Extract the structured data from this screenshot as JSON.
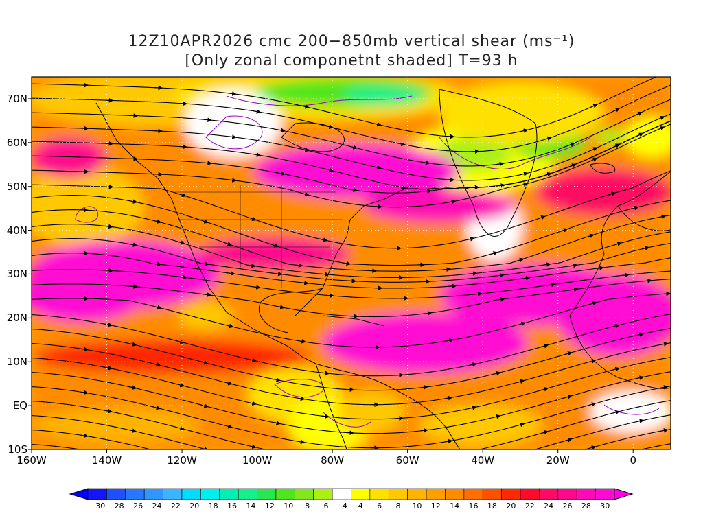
{
  "title": {
    "line1": "12Z10APR2026 cmc 200−850mb vertical shear (ms⁻¹)",
    "line2": "[Only zonal componetnt shaded] T=93 h"
  },
  "map": {
    "lat_ticks": [
      "70N",
      "60N",
      "50N",
      "40N",
      "30N",
      "20N",
      "10N",
      "EQ",
      "10S"
    ],
    "lon_ticks": [
      "160W",
      "140W",
      "120W",
      "100W",
      "80W",
      "60W",
      "40W",
      "20W",
      "0"
    ],
    "lat_range": [
      -10,
      75
    ],
    "lon_range": [
      -160,
      10
    ],
    "projection": "cylindrical equidistant",
    "overlay": "streamlines (black) with arrowheads; purple zero-contour lines; continental outlines"
  },
  "colorbar": {
    "labels": [
      "−30",
      "−28",
      "−26",
      "−24",
      "−22",
      "−20",
      "−18",
      "−16",
      "−14",
      "−12",
      "−10",
      "−8",
      "−6",
      "−4",
      "4",
      "6",
      "8",
      "10",
      "12",
      "14",
      "16",
      "18",
      "20",
      "22",
      "24",
      "26",
      "28",
      "30"
    ],
    "colors": [
      "#1414ff",
      "#1e50ff",
      "#2878ff",
      "#3296ff",
      "#3cb4ff",
      "#00dcff",
      "#00f0f0",
      "#00f0b4",
      "#14f08c",
      "#28e650",
      "#50e61e",
      "#82e61e",
      "#aaf014",
      "#ffffff",
      "#ffff00",
      "#ffe100",
      "#ffc800",
      "#ffb400",
      "#ffa000",
      "#ff8c00",
      "#ff6e00",
      "#ff5000",
      "#ff2800",
      "#ff0a28",
      "#ff0a64",
      "#ff0a8c",
      "#ff0ab4",
      "#ff0ad2"
    ]
  }
}
